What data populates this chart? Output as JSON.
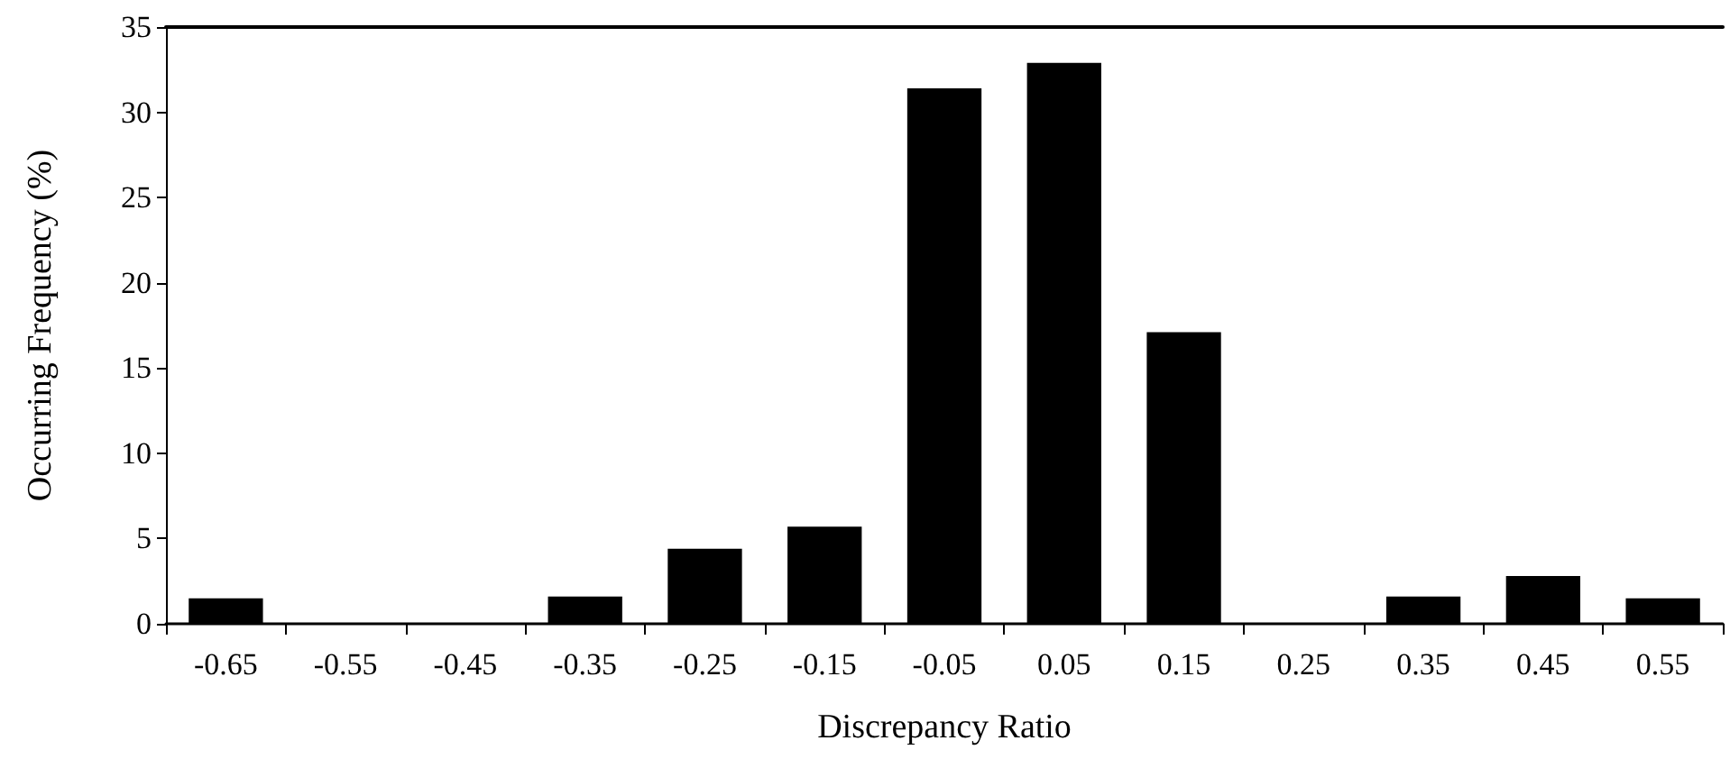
{
  "chart_data": {
    "type": "bar",
    "xlabel": "Discrepancy Ratio",
    "ylabel": "Occurring Frequency (%)",
    "categories": [
      "-0.65",
      "-0.55",
      "-0.45",
      "-0.35",
      "-0.25",
      "-0.15",
      "-0.05",
      "0.05",
      "0.15",
      "0.25",
      "0.35",
      "0.45",
      "0.55"
    ],
    "values": [
      1.5,
      0,
      0,
      1.6,
      4.4,
      5.7,
      31.4,
      32.9,
      17.1,
      0,
      1.6,
      2.8,
      1.5
    ],
    "color": "#000000",
    "ylim": [
      0,
      35
    ],
    "yticks": [
      0,
      5,
      10,
      15,
      20,
      25,
      30,
      35
    ],
    "grid": false
  }
}
